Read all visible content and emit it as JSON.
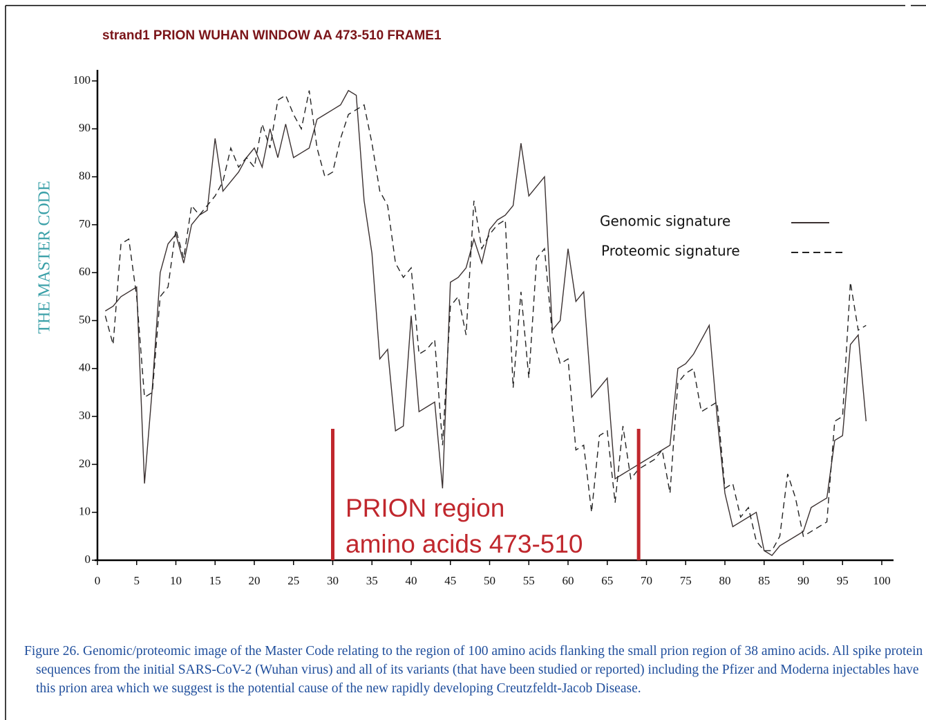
{
  "chart_data": {
    "type": "line",
    "title": "strand1 PRION WUHAN WINDOW AA 473-510 FRAME1",
    "ylabel": "THE MASTER CODE",
    "x": [
      1,
      2,
      3,
      4,
      5,
      6,
      7,
      8,
      9,
      10,
      11,
      12,
      13,
      14,
      15,
      16,
      17,
      18,
      19,
      20,
      21,
      22,
      23,
      24,
      25,
      26,
      27,
      28,
      29,
      30,
      31,
      32,
      33,
      34,
      35,
      36,
      37,
      38,
      39,
      40,
      41,
      42,
      43,
      44,
      45,
      46,
      47,
      48,
      49,
      50,
      51,
      52,
      53,
      54,
      55,
      56,
      57,
      58,
      59,
      60,
      61,
      62,
      63,
      64,
      65,
      66,
      67,
      68,
      69,
      70,
      71,
      72,
      73,
      74,
      75,
      76,
      77,
      78,
      79,
      80,
      81,
      82,
      83,
      84,
      85,
      86,
      87,
      88,
      89,
      90,
      91,
      92,
      93,
      94,
      95,
      96,
      97,
      98
    ],
    "series": [
      {
        "name": "Genomic signature",
        "color": "#3a3030",
        "line_style": "solid",
        "values": [
          52,
          53,
          55,
          56,
          57,
          16,
          36,
          60,
          66,
          68,
          62,
          70,
          72,
          73,
          88,
          77,
          79,
          81,
          84,
          86,
          82,
          90,
          84,
          91,
          84,
          85,
          86,
          92,
          93,
          94,
          95,
          98,
          97,
          75,
          64,
          42,
          44,
          27,
          28,
          51,
          31,
          32,
          33,
          15,
          58,
          59,
          61,
          67,
          62,
          69,
          71,
          72,
          74,
          87,
          76,
          78,
          80,
          48,
          50,
          65,
          54,
          56,
          34,
          36,
          38,
          17,
          18,
          19,
          20,
          21,
          22,
          23,
          24,
          40,
          41,
          43,
          46,
          49,
          30,
          14,
          7,
          8,
          9,
          10,
          2,
          1,
          3,
          4,
          5,
          6,
          11,
          12,
          13,
          25,
          26,
          45,
          47,
          29
        ]
      },
      {
        "name": "Proteomic signature",
        "color": "#222222",
        "line_style": "dashed",
        "values": [
          51,
          45,
          66,
          67,
          55,
          34,
          35,
          55,
          57,
          69,
          63,
          74,
          72,
          74,
          76,
          79,
          86,
          82,
          84,
          82,
          91,
          86,
          96,
          97,
          93,
          90,
          98,
          86,
          80,
          81,
          88,
          93,
          94,
          95,
          87,
          77,
          74,
          62,
          59,
          61,
          43,
          44,
          46,
          24,
          53,
          55,
          47,
          75,
          65,
          68,
          70,
          71,
          36,
          56,
          38,
          63,
          65,
          47,
          41,
          42,
          23,
          24,
          10,
          26,
          27,
          12,
          28,
          17,
          19,
          20,
          21,
          23,
          14,
          37,
          39,
          40,
          31,
          32,
          33,
          15,
          16,
          9,
          11,
          4,
          2,
          2,
          5,
          18,
          13,
          5,
          6,
          7,
          8,
          29,
          30,
          58,
          48,
          49
        ]
      }
    ],
    "xlim": [
      0,
      100
    ],
    "xticks": [
      0,
      5,
      10,
      15,
      20,
      25,
      30,
      35,
      40,
      45,
      50,
      55,
      60,
      65,
      70,
      75,
      80,
      85,
      90,
      95,
      100
    ],
    "ylim": [
      0,
      100
    ],
    "yticks": [
      0,
      10,
      20,
      30,
      40,
      50,
      60,
      70,
      80,
      90,
      100
    ],
    "highlight_x": [
      30,
      69
    ],
    "highlight_color": "#c0272d",
    "annotation": [
      "PRION region",
      "amino acids 473-510"
    ]
  },
  "caption": "Figure 26. Genomic/proteomic image of the Master Code relating to the region of 100 amino acids flanking the small prion region of 38 amino acids. All spike protein sequences from the initial SARS-CoV-2 (Wuhan virus) and all of its variants (that have been studied or reported) including the Pfizer and Moderna injectables have this prion area which we suggest is the potential cause of the new rapidly developing Creutzfeldt-Jacob Disease."
}
